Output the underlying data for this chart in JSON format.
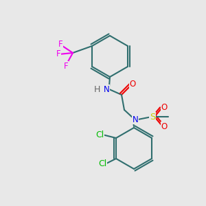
{
  "background_color": "#e8e8e8",
  "bond_color": "#2f6e6e",
  "colors": {
    "N": "#0000ee",
    "O": "#ee0000",
    "F": "#ee00ee",
    "Cl": "#00bb00",
    "S": "#cccc00",
    "C": "#2f6e6e",
    "H": "#666666"
  },
  "line_width": 1.5,
  "font_size": 8.5
}
